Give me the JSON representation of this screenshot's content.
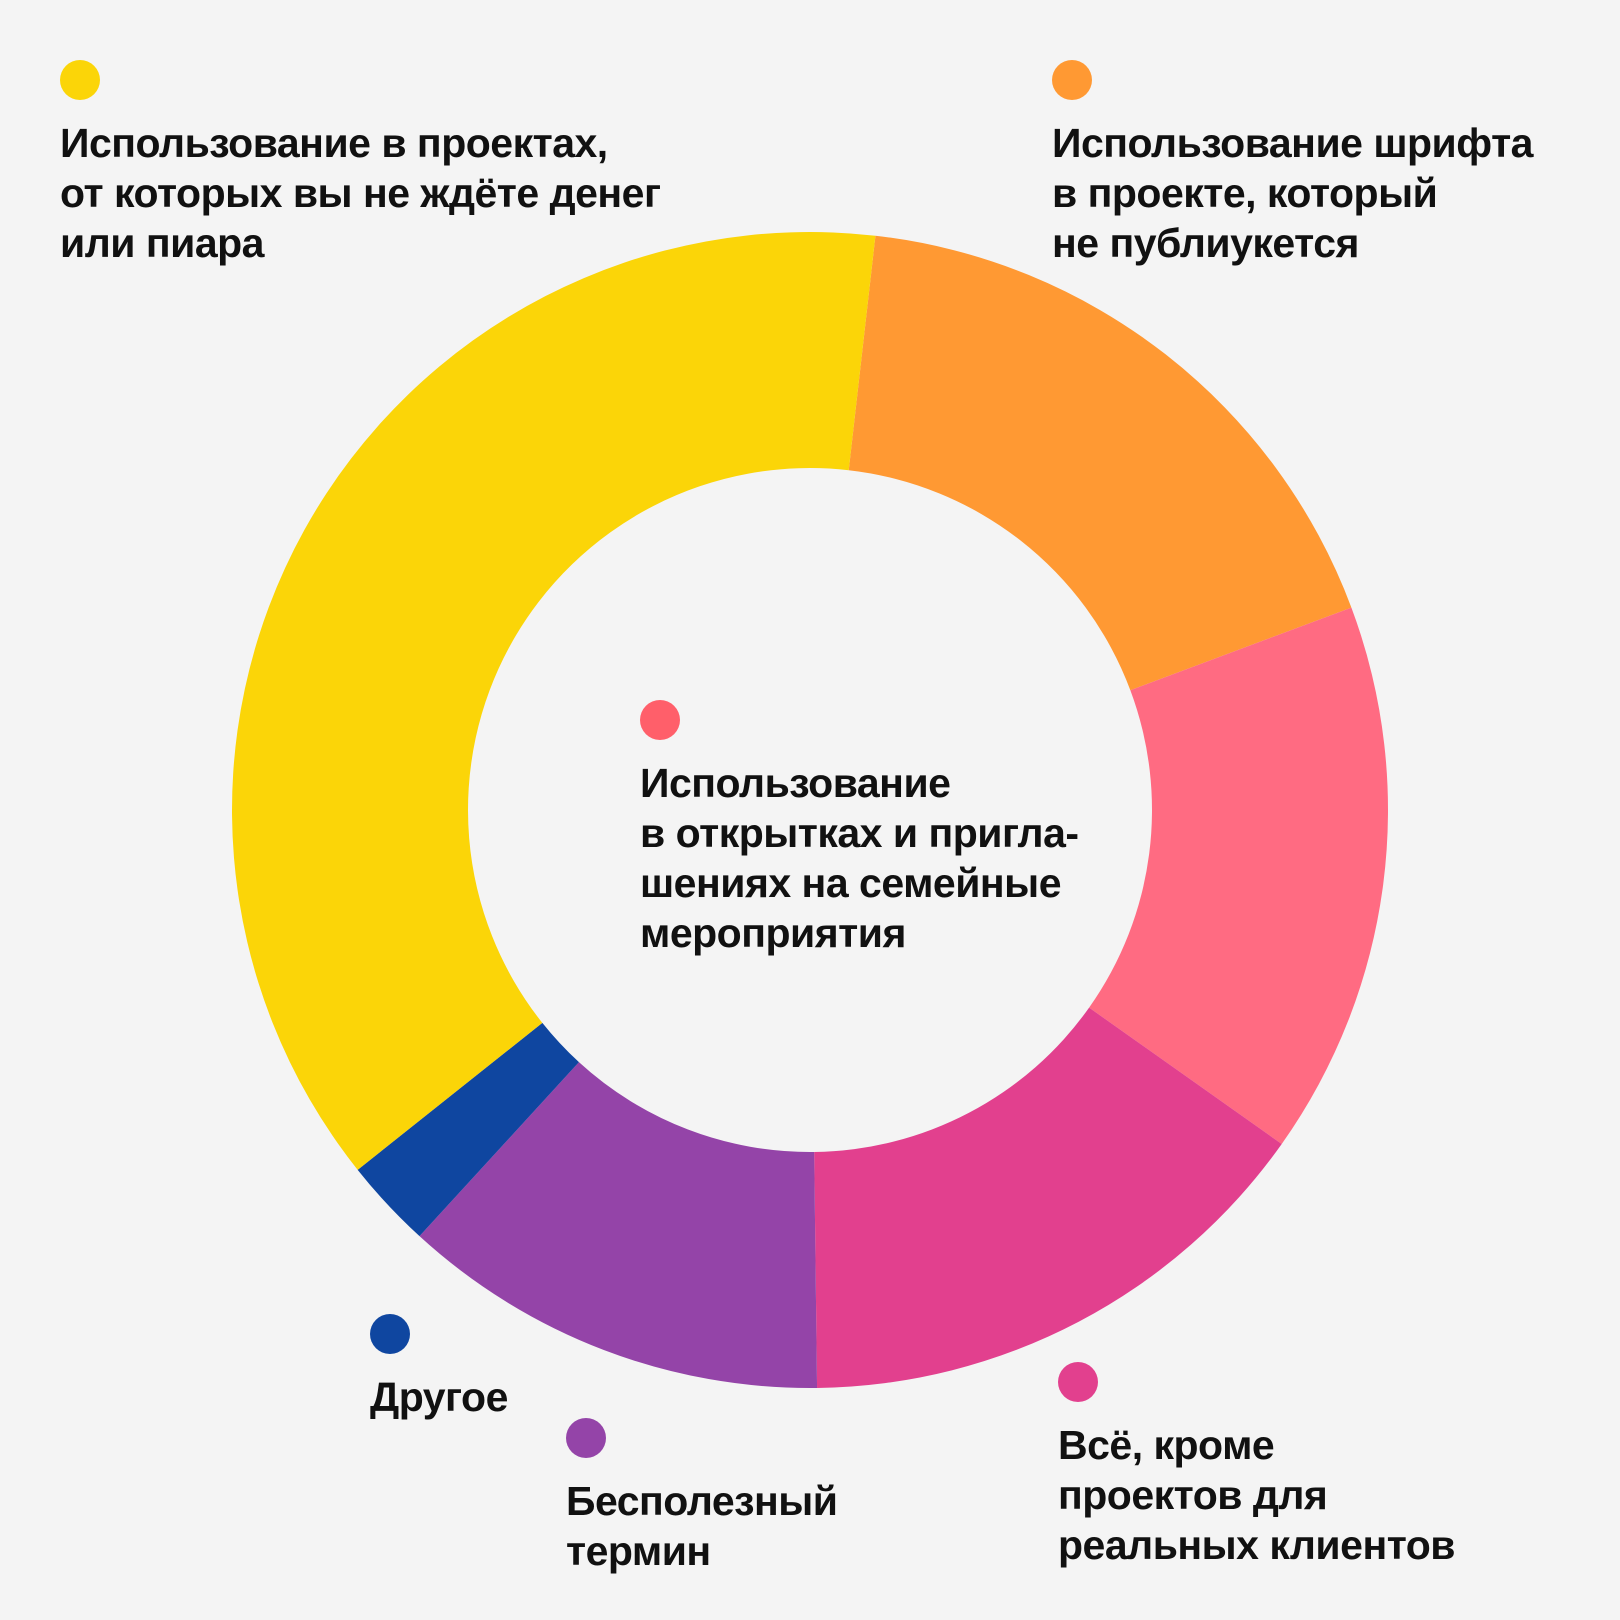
{
  "chart_data": {
    "type": "pie",
    "subtype": "donut",
    "categories": [
      "Использование шрифта\nв проекте, который\nне публиукется",
      "Использование\nв открытках и пригла-\nшениях на семейные\nмероприятия",
      "Всё, кроме\nпроектов для\nреальных клиентов",
      "Бесполезный\nтермин",
      "Другое",
      "Использование в проектах,\nот которых вы не ждёте денег\nили пиара"
    ],
    "values": [
      17.5,
      15.5,
      15,
      12,
      2.5,
      37.5
    ],
    "colors": [
      "#FF9933",
      "#FF6B82",
      "#E2408E",
      "#9444A8",
      "#0F46A0",
      "#FBD508"
    ],
    "legend": [
      {
        "label": "Использование в проектах,\nот которых вы не ждёте денег\nили пиара",
        "color": "#FBD508"
      },
      {
        "label": "Использование шрифта\nв проекте, который\nне публиукется",
        "color": "#FF9933"
      },
      {
        "label": "Использование\nв открытках и пригла-\nшениях на семейные\nмероприятия",
        "color": "#FF5F6A"
      },
      {
        "label": "Всё, кроме\nпроектов для\nреальных клиентов",
        "color": "#E2408E"
      },
      {
        "label": "Бесполезный\nтермин",
        "color": "#9444A8"
      },
      {
        "label": "Другое",
        "color": "#0F46A0"
      }
    ],
    "title": "",
    "legend_placement": "around",
    "start_angle_deg": 6.5
  }
}
